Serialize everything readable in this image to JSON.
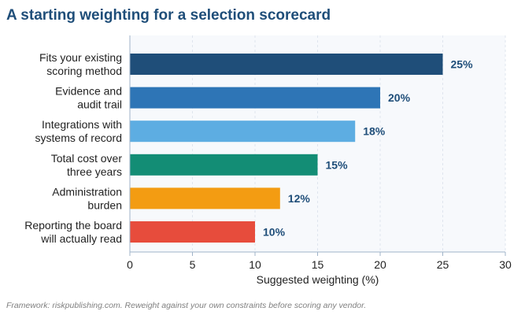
{
  "chart_data": {
    "type": "bar",
    "orientation": "horizontal",
    "title": "A starting weighting for a selection scorecard",
    "categories": [
      [
        "Fits your existing",
        "scoring method"
      ],
      [
        "Evidence and",
        "audit trail"
      ],
      [
        "Integrations with",
        "systems of record"
      ],
      [
        "Total cost over",
        "three years"
      ],
      [
        "Administration",
        "burden"
      ],
      [
        "Reporting the board",
        "will actually read"
      ]
    ],
    "values": [
      25,
      20,
      18,
      15,
      12,
      10
    ],
    "value_labels": [
      "25%",
      "20%",
      "18%",
      "15%",
      "12%",
      "10%"
    ],
    "bar_colors": [
      "#1f4e79",
      "#2e75b6",
      "#5dade2",
      "#138d75",
      "#f39c12",
      "#e74c3c"
    ],
    "xlabel": "Suggested weighting (%)",
    "xlim": [
      0,
      30
    ],
    "xticks": [
      0,
      5,
      10,
      15,
      20,
      25,
      30
    ],
    "grid": "vertical-dashed",
    "legend": "none"
  },
  "footnote": "Framework: riskpublishing.com. Reweight against your own constraints before scoring any vendor."
}
